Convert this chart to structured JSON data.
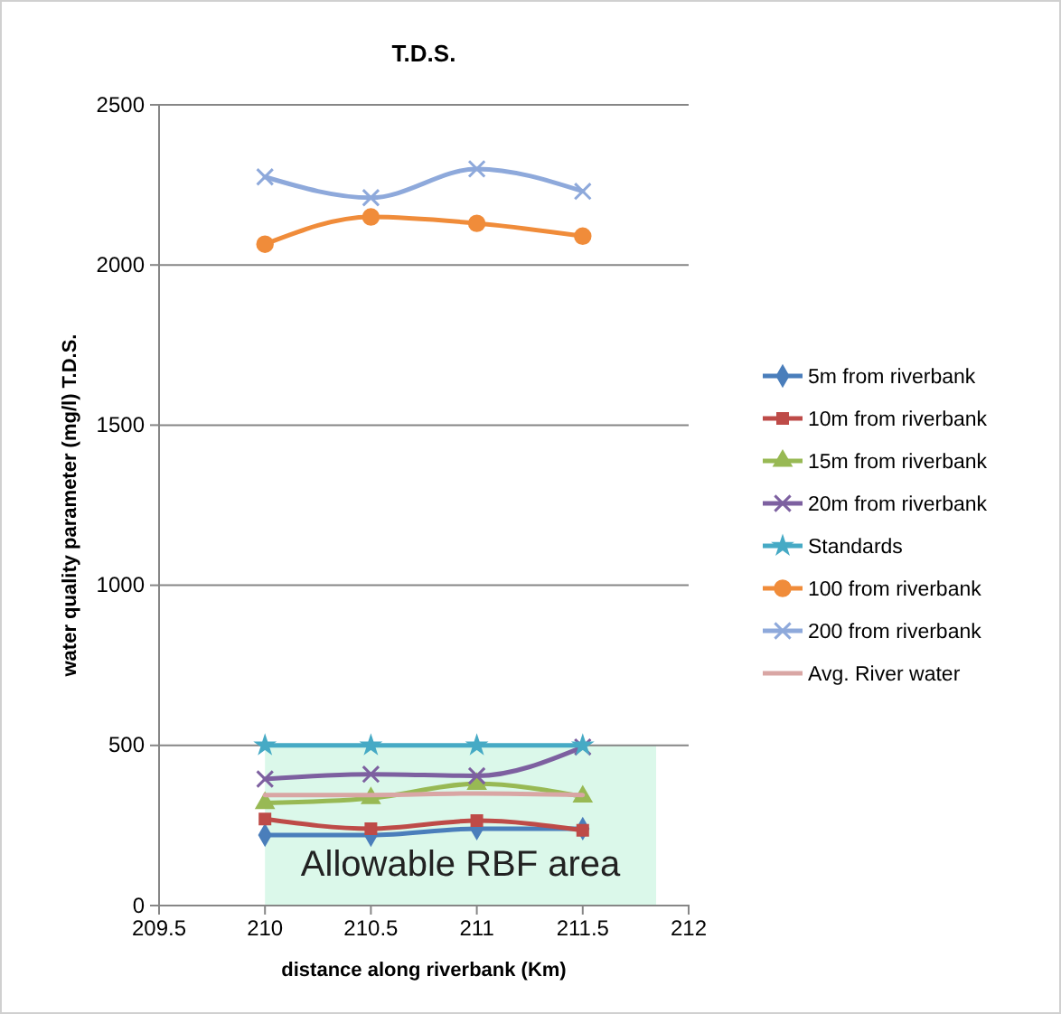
{
  "chart_data": {
    "type": "line",
    "title": "T.D.S.",
    "xlabel": "distance along riverbank (Km)",
    "ylabel": "water quality parameter (mg/l) T.D.S.",
    "x": [
      210,
      210.5,
      211,
      211.5
    ],
    "xlim": [
      209.5,
      212
    ],
    "xticks": [
      209.5,
      210,
      210.5,
      211,
      211.5,
      212
    ],
    "ylim": [
      0,
      2500
    ],
    "yticks": [
      0,
      500,
      1000,
      1500,
      2000,
      2500
    ],
    "grid": "y",
    "legend": "right",
    "bands": [
      {
        "axis": "y",
        "from": 0,
        "to": 500,
        "label": "Allowable RBF area",
        "color": "#d5f7e6"
      }
    ],
    "series": [
      {
        "name": "5m from riverbank",
        "color": "#4a7ebb",
        "marker": "diamond",
        "values": [
          220,
          220,
          240,
          240
        ]
      },
      {
        "name": "10m from riverbank",
        "color": "#be4b48",
        "marker": "square",
        "values": [
          270,
          240,
          265,
          235
        ]
      },
      {
        "name": "15m from riverbank",
        "color": "#98b954",
        "marker": "triangle",
        "values": [
          320,
          335,
          380,
          340
        ]
      },
      {
        "name": "20m from riverbank",
        "color": "#7d60a0",
        "marker": "cross",
        "values": [
          395,
          410,
          405,
          495
        ]
      },
      {
        "name": "Standards",
        "color": "#46aac5",
        "marker": "star",
        "values": [
          500,
          500,
          500,
          500
        ]
      },
      {
        "name": "100 from riverbank",
        "color": "#f08c3a",
        "marker": "circle",
        "values": [
          2065,
          2150,
          2130,
          2090
        ]
      },
      {
        "name": "200 from riverbank",
        "color": "#8ea9db",
        "marker": "cross",
        "values": [
          2275,
          2210,
          2300,
          2230
        ]
      },
      {
        "name": "Avg. River water",
        "color": "#d9a6a4",
        "marker": "none",
        "values": [
          345,
          345,
          350,
          345
        ]
      }
    ]
  }
}
